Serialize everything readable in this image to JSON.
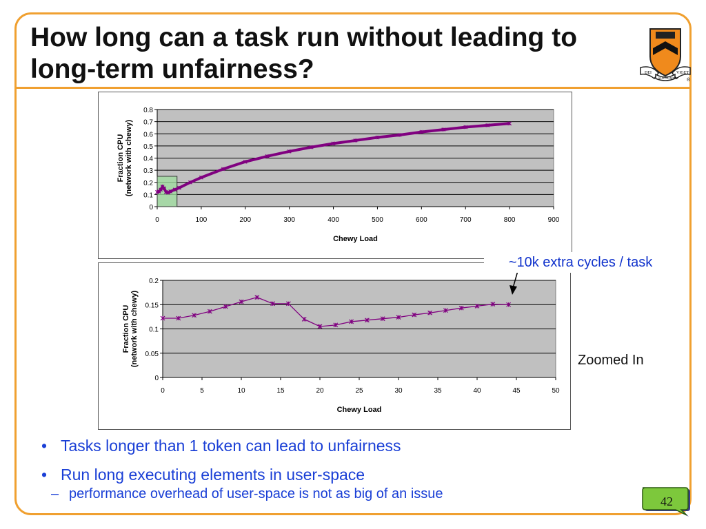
{
  "slide": {
    "title": "How long can a task run without leading to long-term unfairness?",
    "page_number": "42",
    "callout": "~10k extra cycles / task",
    "zoom_label": "Zoomed In",
    "shield_text_left": "DEI",
    "shield_text_mid": "SUB NUMINE",
    "shield_text_right": "VIGET",
    "registered_mark": "®",
    "bullets": [
      {
        "text": "Tasks longer than 1 token can lead to unfairness",
        "subs": []
      },
      {
        "text": "Run long executing elements in user-space",
        "subs": [
          "performance overhead of user-space is not as big of an issue"
        ]
      }
    ],
    "bullet_marker": "•",
    "sub_marker": "–"
  },
  "colors": {
    "accent": "#f0a030",
    "plot_bg": "#c0c0c0",
    "series": "#800080",
    "text_blue": "#1a3fd6",
    "highlight_box": "#9fdf9f"
  },
  "chart_data": [
    {
      "type": "line",
      "title": "",
      "xlabel": "Chewy Load",
      "ylabel": [
        "Fraction CPU",
        "(network with chewy)"
      ],
      "xlim": [
        0,
        900
      ],
      "ylim": [
        0,
        0.8
      ],
      "xticks": [
        0,
        100,
        200,
        300,
        400,
        500,
        600,
        700,
        800,
        900
      ],
      "yticks": [
        "0",
        "0.1",
        "0.2",
        "0.3",
        "0.4",
        "0.5",
        "0.6",
        "0.7",
        "0.8"
      ],
      "grid": true,
      "legend": "none",
      "highlight_region": {
        "x": [
          0,
          45
        ],
        "y": [
          0,
          0.25
        ]
      },
      "series": [
        {
          "x": [
            0,
            4,
            8,
            12,
            16,
            20,
            25,
            30,
            40,
            50,
            75,
            100,
            150,
            200,
            250,
            300,
            350,
            400,
            450,
            500,
            550,
            600,
            650,
            700,
            750,
            800
          ],
          "y": [
            0.12,
            0.125,
            0.14,
            0.165,
            0.15,
            0.12,
            0.115,
            0.125,
            0.14,
            0.155,
            0.2,
            0.24,
            0.31,
            0.37,
            0.415,
            0.455,
            0.49,
            0.52,
            0.545,
            0.57,
            0.59,
            0.615,
            0.635,
            0.655,
            0.67,
            0.685
          ]
        }
      ]
    },
    {
      "type": "line",
      "title": "",
      "xlabel": "Chewy Load",
      "ylabel": [
        "Fraction CPU",
        "(network with chewy)"
      ],
      "xlim": [
        0,
        50
      ],
      "ylim": [
        0,
        0.2
      ],
      "xticks": [
        0,
        5,
        10,
        15,
        20,
        25,
        30,
        35,
        40,
        45,
        50
      ],
      "yticks": [
        "0",
        "0.05",
        "0.1",
        "0.15",
        "0.2"
      ],
      "grid": true,
      "legend": "none",
      "series": [
        {
          "x": [
            0,
            2,
            4,
            6,
            8,
            10,
            12,
            14,
            16,
            18,
            20,
            22,
            24,
            26,
            28,
            30,
            32,
            34,
            36,
            38,
            40,
            42,
            44
          ],
          "y": [
            0.122,
            0.122,
            0.128,
            0.136,
            0.146,
            0.156,
            0.165,
            0.152,
            0.152,
            0.12,
            0.105,
            0.108,
            0.115,
            0.118,
            0.121,
            0.124,
            0.129,
            0.133,
            0.138,
            0.143,
            0.147,
            0.151,
            0.15
          ]
        }
      ]
    }
  ]
}
